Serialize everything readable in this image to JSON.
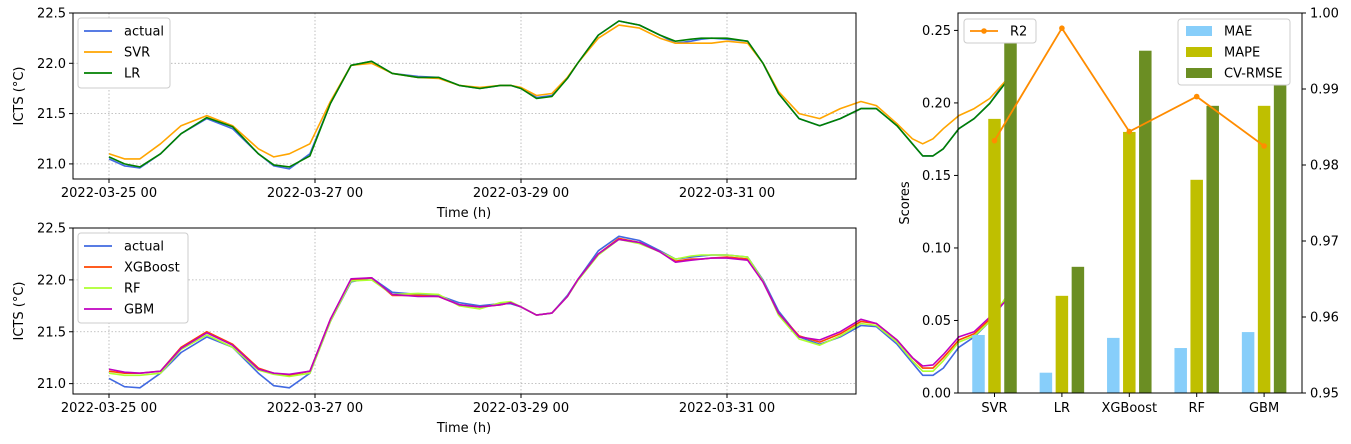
{
  "chart_data": [
    {
      "type": "line",
      "xlabel": "Time (h)",
      "ylabel": "ICTS (°C)",
      "ylim": [
        20.85,
        22.5
      ],
      "x_range_days_from": "2022-03-25 00",
      "x_tick_labels": [
        "2022-03-25 00",
        "2022-03-27 00",
        "2022-03-29 00",
        "2022-03-31 00"
      ],
      "y_tick_labels": [
        "21.0",
        "21.5",
        "22.0",
        "22.5"
      ],
      "grid": true,
      "legend_position": "top-left",
      "series": [
        {
          "name": "actual",
          "color": "#4169e1",
          "x_days": [
            0,
            0.15,
            0.3,
            0.5,
            0.7,
            0.95,
            1.2,
            1.45,
            1.6,
            1.75,
            1.95,
            2.15,
            2.35,
            2.55,
            2.75,
            3.0,
            3.2,
            3.4,
            3.6,
            3.8,
            3.9,
            4.0,
            4.15,
            4.3,
            4.45,
            4.55,
            4.75,
            4.95,
            5.15,
            5.35,
            5.5,
            5.65,
            5.75,
            5.85,
            6.0,
            6.2,
            6.35,
            6.5,
            6.7,
            6.9,
            7.1,
            7.3,
            7.45,
            7.65,
            7.8,
            7.9,
            8.0,
            8.1,
            8.25,
            8.4,
            8.55,
            8.7
          ],
          "values": [
            21.05,
            20.98,
            20.96,
            21.1,
            21.3,
            21.45,
            21.35,
            21.1,
            20.98,
            20.95,
            21.1,
            21.6,
            21.98,
            22.02,
            21.9,
            21.87,
            21.86,
            21.78,
            21.75,
            21.78,
            21.78,
            21.75,
            21.66,
            21.68,
            21.85,
            22.0,
            22.28,
            22.42,
            22.38,
            22.28,
            22.2,
            22.22,
            22.24,
            22.25,
            22.24,
            22.22,
            22.0,
            21.7,
            21.45,
            21.38,
            21.45,
            21.55,
            21.55,
            21.38,
            21.2,
            21.08,
            21.08,
            21.15,
            21.35,
            21.45,
            21.6,
            21.82
          ]
        },
        {
          "name": "SVR",
          "color": "#ffa500",
          "x_days": [
            0,
            0.15,
            0.3,
            0.5,
            0.7,
            0.95,
            1.2,
            1.45,
            1.6,
            1.75,
            1.95,
            2.15,
            2.35,
            2.55,
            2.75,
            3.0,
            3.2,
            3.4,
            3.6,
            3.8,
            3.9,
            4.0,
            4.15,
            4.3,
            4.45,
            4.55,
            4.75,
            4.95,
            5.15,
            5.35,
            5.5,
            5.65,
            5.75,
            5.85,
            6.0,
            6.2,
            6.35,
            6.5,
            6.7,
            6.9,
            7.1,
            7.3,
            7.45,
            7.65,
            7.8,
            7.9,
            8.0,
            8.1,
            8.25,
            8.4,
            8.55,
            8.7
          ],
          "values": [
            21.1,
            21.05,
            21.05,
            21.2,
            21.38,
            21.48,
            21.38,
            21.15,
            21.07,
            21.1,
            21.2,
            21.62,
            21.98,
            22.0,
            21.9,
            21.86,
            21.85,
            21.78,
            21.76,
            21.78,
            21.78,
            21.76,
            21.68,
            21.7,
            21.86,
            22.0,
            22.25,
            22.38,
            22.35,
            22.25,
            22.2,
            22.2,
            22.2,
            22.2,
            22.22,
            22.2,
            22.0,
            21.72,
            21.5,
            21.45,
            21.55,
            21.62,
            21.58,
            21.4,
            21.25,
            21.2,
            21.25,
            21.35,
            21.48,
            21.55,
            21.65,
            21.82
          ]
        },
        {
          "name": "LR",
          "color": "#008000",
          "x_days": [
            0,
            0.15,
            0.3,
            0.5,
            0.7,
            0.95,
            1.2,
            1.45,
            1.6,
            1.75,
            1.95,
            2.15,
            2.35,
            2.55,
            2.75,
            3.0,
            3.2,
            3.4,
            3.6,
            3.8,
            3.9,
            4.0,
            4.15,
            4.3,
            4.45,
            4.55,
            4.75,
            4.95,
            5.15,
            5.35,
            5.5,
            5.65,
            5.75,
            5.85,
            6.0,
            6.2,
            6.35,
            6.5,
            6.7,
            6.9,
            7.1,
            7.3,
            7.45,
            7.65,
            7.8,
            7.9,
            8.0,
            8.1,
            8.25,
            8.4,
            8.55,
            8.7
          ],
          "values": [
            21.07,
            21.0,
            20.97,
            21.1,
            21.3,
            21.46,
            21.37,
            21.1,
            20.99,
            20.97,
            21.08,
            21.6,
            21.98,
            22.02,
            21.9,
            21.86,
            21.86,
            21.78,
            21.75,
            21.78,
            21.78,
            21.75,
            21.65,
            21.67,
            21.85,
            22.0,
            22.28,
            22.42,
            22.38,
            22.28,
            22.22,
            22.24,
            22.25,
            22.25,
            22.25,
            22.22,
            22.0,
            21.7,
            21.45,
            21.38,
            21.45,
            21.55,
            21.55,
            21.38,
            21.2,
            21.08,
            21.08,
            21.15,
            21.35,
            21.45,
            21.6,
            21.8
          ]
        }
      ]
    },
    {
      "type": "line",
      "xlabel": "Time (h)",
      "ylabel": "ICTS (°C)",
      "ylim": [
        20.9,
        22.5
      ],
      "x_range_days_from": "2022-03-25 00",
      "x_tick_labels": [
        "2022-03-25 00",
        "2022-03-27 00",
        "2022-03-29 00",
        "2022-03-31 00"
      ],
      "y_tick_labels": [
        "21.0",
        "21.5",
        "22.0",
        "22.5"
      ],
      "grid": true,
      "legend_position": "top-left",
      "series": [
        {
          "name": "actual",
          "color": "#4169e1",
          "x_days": [
            0,
            0.15,
            0.3,
            0.5,
            0.7,
            0.95,
            1.2,
            1.45,
            1.6,
            1.75,
            1.95,
            2.15,
            2.35,
            2.55,
            2.75,
            3.0,
            3.2,
            3.4,
            3.6,
            3.8,
            3.9,
            4.0,
            4.15,
            4.3,
            4.45,
            4.55,
            4.75,
            4.95,
            5.15,
            5.35,
            5.5,
            5.65,
            5.75,
            5.85,
            6.0,
            6.2,
            6.35,
            6.5,
            6.7,
            6.9,
            7.1,
            7.3,
            7.45,
            7.65,
            7.8,
            7.9,
            8.0,
            8.1,
            8.25,
            8.4,
            8.55,
            8.7
          ],
          "values": [
            21.05,
            20.97,
            20.96,
            21.1,
            21.3,
            21.45,
            21.35,
            21.1,
            20.98,
            20.96,
            21.1,
            21.6,
            21.98,
            22.02,
            21.88,
            21.86,
            21.85,
            21.78,
            21.75,
            21.77,
            21.77,
            21.74,
            21.66,
            21.68,
            21.85,
            22.0,
            22.28,
            22.42,
            22.38,
            22.28,
            22.2,
            22.22,
            22.23,
            22.24,
            22.24,
            22.22,
            22.0,
            21.7,
            21.45,
            21.38,
            21.45,
            21.56,
            21.55,
            21.38,
            21.2,
            21.08,
            21.08,
            21.15,
            21.35,
            21.45,
            21.6,
            21.8
          ]
        },
        {
          "name": "XGBoost",
          "color": "#ff4500",
          "x_days": [
            0,
            0.15,
            0.3,
            0.5,
            0.7,
            0.95,
            1.2,
            1.45,
            1.6,
            1.75,
            1.95,
            2.15,
            2.35,
            2.55,
            2.75,
            3.0,
            3.2,
            3.4,
            3.6,
            3.8,
            3.9,
            4.0,
            4.15,
            4.3,
            4.45,
            4.55,
            4.75,
            4.95,
            5.15,
            5.35,
            5.5,
            5.65,
            5.75,
            5.85,
            6.0,
            6.2,
            6.35,
            6.5,
            6.7,
            6.9,
            7.1,
            7.3,
            7.45,
            7.65,
            7.8,
            7.9,
            8.0,
            8.1,
            8.25,
            8.4,
            8.55,
            8.7
          ],
          "values": [
            21.12,
            21.1,
            21.1,
            21.12,
            21.35,
            21.5,
            21.38,
            21.15,
            21.1,
            21.08,
            21.12,
            21.62,
            22.0,
            22.02,
            21.85,
            21.85,
            21.84,
            21.76,
            21.74,
            21.76,
            21.78,
            21.74,
            21.66,
            21.68,
            21.84,
            22.0,
            22.25,
            22.4,
            22.36,
            22.27,
            22.18,
            22.2,
            22.2,
            22.21,
            22.22,
            22.2,
            21.98,
            21.68,
            21.46,
            21.4,
            21.48,
            21.6,
            21.58,
            21.42,
            21.25,
            21.15,
            21.15,
            21.25,
            21.42,
            21.48,
            21.62,
            21.8
          ]
        },
        {
          "name": "RF",
          "color": "#adff2f",
          "x_days": [
            0,
            0.15,
            0.3,
            0.5,
            0.7,
            0.95,
            1.2,
            1.45,
            1.6,
            1.75,
            1.95,
            2.15,
            2.35,
            2.55,
            2.75,
            3.0,
            3.2,
            3.4,
            3.6,
            3.8,
            3.9,
            4.0,
            4.15,
            4.3,
            4.45,
            4.55,
            4.75,
            4.95,
            5.15,
            5.35,
            5.5,
            5.65,
            5.75,
            5.85,
            6.0,
            6.2,
            6.35,
            6.5,
            6.7,
            6.9,
            7.1,
            7.3,
            7.45,
            7.65,
            7.8,
            7.9,
            8.0,
            8.1,
            8.25,
            8.4,
            8.55,
            8.7
          ],
          "values": [
            21.1,
            21.08,
            21.08,
            21.1,
            21.33,
            21.47,
            21.35,
            21.13,
            21.09,
            21.07,
            21.1,
            21.6,
            21.99,
            22.0,
            21.86,
            21.87,
            21.86,
            21.75,
            21.72,
            21.78,
            21.79,
            21.74,
            21.66,
            21.68,
            21.84,
            21.99,
            22.24,
            22.39,
            22.35,
            22.27,
            22.2,
            22.23,
            22.24,
            22.24,
            22.24,
            22.22,
            21.99,
            21.66,
            21.43,
            21.37,
            21.46,
            21.58,
            21.56,
            21.4,
            21.22,
            21.12,
            21.12,
            21.22,
            21.4,
            21.46,
            21.6,
            21.82
          ]
        },
        {
          "name": "GBM",
          "color": "#c000c0",
          "x_days": [
            0,
            0.15,
            0.3,
            0.5,
            0.7,
            0.95,
            1.2,
            1.45,
            1.6,
            1.75,
            1.95,
            2.15,
            2.35,
            2.55,
            2.75,
            3.0,
            3.2,
            3.4,
            3.6,
            3.8,
            3.9,
            4.0,
            4.15,
            4.3,
            4.45,
            4.55,
            4.75,
            4.95,
            5.15,
            5.35,
            5.5,
            5.65,
            5.75,
            5.85,
            6.0,
            6.2,
            6.35,
            6.5,
            6.7,
            6.9,
            7.1,
            7.3,
            7.45,
            7.65,
            7.8,
            7.9,
            8.0,
            8.1,
            8.25,
            8.4,
            8.55,
            8.7
          ],
          "values": [
            21.14,
            21.11,
            21.1,
            21.12,
            21.34,
            21.49,
            21.37,
            21.14,
            21.1,
            21.09,
            21.12,
            21.62,
            22.01,
            22.02,
            21.86,
            21.84,
            21.84,
            21.76,
            21.74,
            21.76,
            21.78,
            21.74,
            21.66,
            21.68,
            21.84,
            22.0,
            22.25,
            22.39,
            22.36,
            22.27,
            22.17,
            22.19,
            22.2,
            22.21,
            22.21,
            22.19,
            21.98,
            21.68,
            21.45,
            21.42,
            21.5,
            21.62,
            21.58,
            21.42,
            21.25,
            21.17,
            21.18,
            21.28,
            21.45,
            21.5,
            21.64,
            21.79
          ]
        }
      ]
    },
    {
      "type": "bar",
      "categories": [
        "SVR",
        "LR",
        "XGBoost",
        "RF",
        "GBM"
      ],
      "ylabel": "Scores",
      "ylim": [
        0,
        0.262
      ],
      "y_tick_labels": [
        "0.00",
        "0.05",
        "0.10",
        "0.15",
        "0.20",
        "0.25"
      ],
      "y2lim": [
        0.95,
        1.0
      ],
      "y2_tick_labels": [
        "0.95",
        "0.96",
        "0.97",
        "0.98",
        "0.99",
        "1.00"
      ],
      "legend_position": "top-right",
      "series": [
        {
          "name": "MAE",
          "color": "#87cefa",
          "values": [
            0.04,
            0.014,
            0.038,
            0.031,
            0.042
          ]
        },
        {
          "name": "MAPE",
          "color": "#bfbf00",
          "values": [
            0.189,
            0.067,
            0.18,
            0.147,
            0.198
          ]
        },
        {
          "name": "CV-RMSE",
          "color": "#6b8e23",
          "values": [
            0.247,
            0.087,
            0.236,
            0.198,
            0.25
          ]
        }
      ],
      "line_series": {
        "name": "R2",
        "color": "#ff8c00",
        "axis": "right",
        "values": [
          0.9832,
          0.998,
          0.9844,
          0.989,
          0.9825
        ]
      }
    }
  ]
}
